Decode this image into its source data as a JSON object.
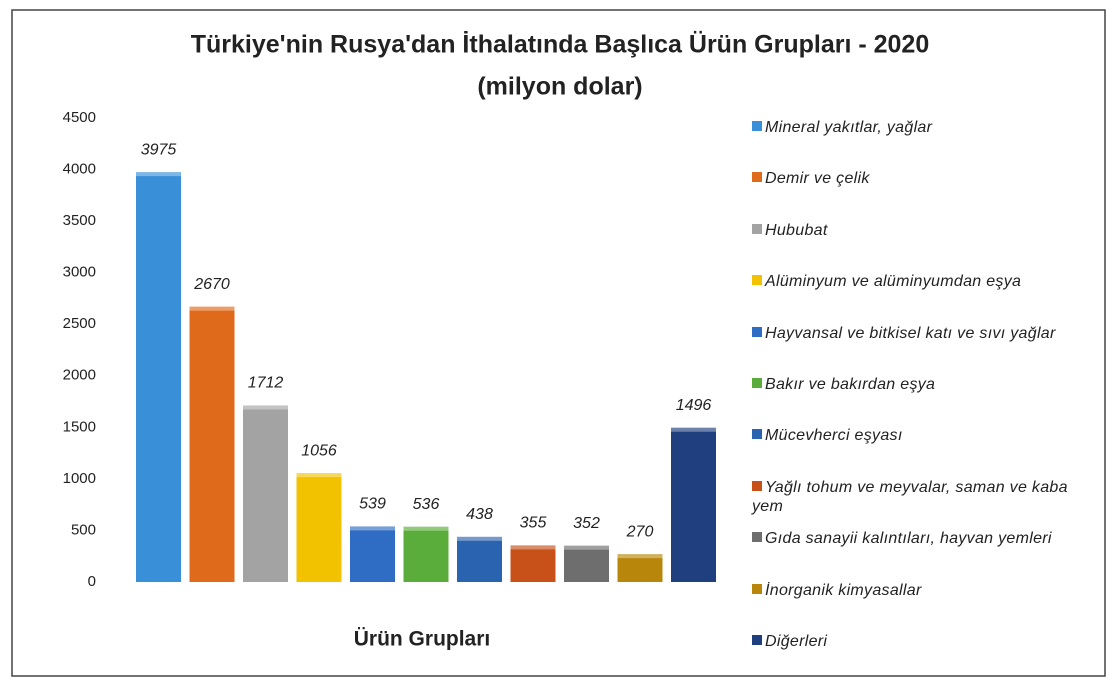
{
  "chart_data": {
    "type": "bar",
    "title": "Türkiye'nin Rusya'dan İthalatında Başlıca Ürün Grupları - 2020",
    "subtitle": "(milyon dolar)",
    "x_label": "Ürün Grupları",
    "categories": [
      "Mineral yakıtlar, yağlar",
      "Demir ve çelik",
      "Hububat",
      "Alüminyum ve alüminyumdan eşya",
      "Hayvansal ve bitkisel katı ve sıvı yağlar",
      "Bakır ve bakırdan eşya",
      "Mücevherci eşyası",
      "Yağlı tohum ve meyvalar, saman ve kaba yem",
      "Gıda sanayii kalıntıları, hayvan yemleri",
      "İnorganik kimyasallar",
      "Diğerleri"
    ],
    "values": [
      3975,
      2670,
      1712,
      1056,
      539,
      536,
      438,
      355,
      352,
      270,
      1496
    ],
    "colors": [
      "#3a8fd9",
      "#e06a1b",
      "#a3a3a3",
      "#f2c200",
      "#2f6cc4",
      "#5aad3a",
      "#2a63b0",
      "#c8511a",
      "#6e6e6e",
      "#b8860b",
      "#1f3f7f"
    ],
    "ylim": [
      0,
      4500
    ],
    "yticks": [
      0,
      500,
      1000,
      1500,
      2000,
      2500,
      3000,
      3500,
      4000,
      4500
    ],
    "grid": false,
    "legend": "right"
  }
}
